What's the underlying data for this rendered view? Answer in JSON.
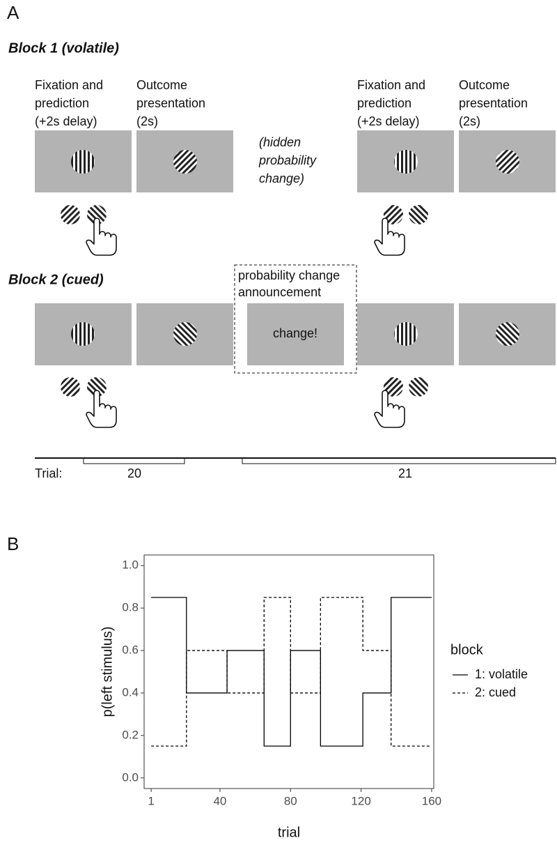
{
  "panel_a": {
    "label": "A",
    "block1": {
      "title": "Block 1 (volatile)",
      "left": {
        "fixation": [
          "Fixation and",
          "prediction",
          "(+2s delay)"
        ],
        "outcome": [
          "Outcome",
          "presentation",
          "(2s)"
        ]
      },
      "hidden": [
        "(hidden",
        "probability",
        "change)"
      ],
      "right": {
        "fixation": [
          "Fixation and",
          "prediction",
          "(+2s delay)"
        ],
        "outcome": [
          "Outcome",
          "presentation",
          "(2s)"
        ]
      }
    },
    "block2": {
      "title": "Block 2 (cued)",
      "announcement": [
        "probability change",
        "announcement"
      ],
      "change": "change!"
    },
    "timeline": {
      "label": "Trial:",
      "trials": [
        20,
        21
      ]
    }
  },
  "panel_b_label": "B",
  "chart_data": {
    "type": "line",
    "drawstyle": "steps-post",
    "xlabel": "trial",
    "ylabel": "p(left stimulus)",
    "x": [
      1,
      21,
      44,
      65,
      80,
      97,
      121,
      137,
      160
    ],
    "series": [
      {
        "name": "1: volatile",
        "color": "#000000",
        "linestyle": "solid",
        "values": [
          0.85,
          0.4,
          0.6,
          0.15,
          0.6,
          0.15,
          0.4,
          0.85,
          0.85
        ]
      },
      {
        "name": "2: cued",
        "color": "#000000",
        "linestyle": "dashed",
        "values": [
          0.15,
          0.6,
          0.4,
          0.85,
          0.4,
          0.85,
          0.6,
          0.15,
          0.15
        ]
      }
    ],
    "xlim": [
      -3,
      161.2
    ],
    "ylim": [
      -0.05,
      1.05
    ],
    "xticks": [
      1,
      40,
      80,
      120,
      160
    ],
    "yticks": [
      {
        "value": 0,
        "label": "0.0"
      },
      0.2,
      0.4,
      0.6,
      0.8,
      {
        "value": 1,
        "label": "1.0"
      }
    ],
    "legend": {
      "title": "block",
      "position": "right"
    },
    "grid": false
  }
}
